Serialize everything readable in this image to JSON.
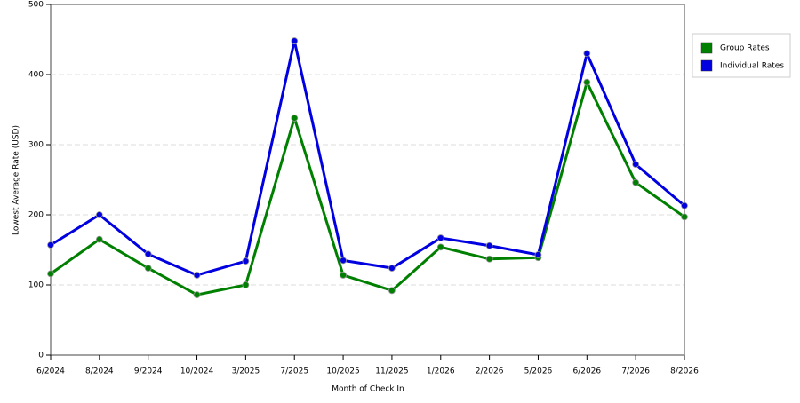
{
  "chart_data": {
    "type": "line",
    "x_label": "Month of Check In",
    "y_label": "Lowest Average Rate (USD)",
    "categories": [
      "6/2024",
      "8/2024",
      "9/2024",
      "10/2024",
      "3/2025",
      "7/2025",
      "10/2025",
      "11/2025",
      "1/2026",
      "2/2026",
      "5/2026",
      "6/2026",
      "7/2026",
      "8/2026"
    ],
    "series": [
      {
        "name": "Group Rates",
        "color": "#008000",
        "values": [
          116,
          165,
          124,
          86,
          100,
          338,
          114,
          92,
          154,
          137,
          139,
          389,
          246,
          197
        ]
      },
      {
        "name": "Individual Rates",
        "color": "#0000e0",
        "values": [
          157,
          200,
          144,
          114,
          134,
          448,
          135,
          124,
          167,
          156,
          143,
          430,
          272,
          213
        ]
      }
    ],
    "ylim": [
      0,
      500
    ],
    "yticks": [
      0,
      100,
      200,
      300,
      400,
      500
    ],
    "grid": true,
    "legend": "right"
  }
}
